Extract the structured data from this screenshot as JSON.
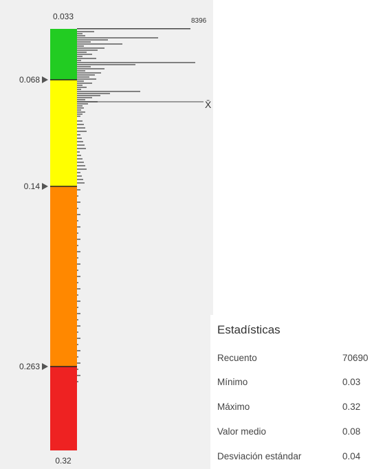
{
  "colorbar": {
    "min_label": "0.033",
    "max_label": "0.32",
    "breaks": [
      {
        "label": "0.068",
        "value": 0.068
      },
      {
        "label": "0.14",
        "value": 0.14
      },
      {
        "label": "0.263",
        "value": 0.263
      }
    ],
    "classes": [
      {
        "from": 0.033,
        "to": 0.068,
        "color": "#22cc22"
      },
      {
        "from": 0.068,
        "to": 0.14,
        "color": "#ffff00"
      },
      {
        "from": 0.14,
        "to": 0.263,
        "color": "#ff8800"
      },
      {
        "from": 0.263,
        "to": 0.32,
        "color": "#ee2222"
      }
    ],
    "histogram_max_label": "8396",
    "mean_symbol": "X̄"
  },
  "statistics": {
    "title": "Estadísticas",
    "rows": [
      {
        "label": "Recuento",
        "value": "70690"
      },
      {
        "label": "Mínimo",
        "value": "0.03"
      },
      {
        "label": "Máximo",
        "value": "0.32"
      },
      {
        "label": "Valor medio",
        "value": "0.08"
      },
      {
        "label": "Desviación estándar",
        "value": "0.04"
      }
    ]
  }
}
